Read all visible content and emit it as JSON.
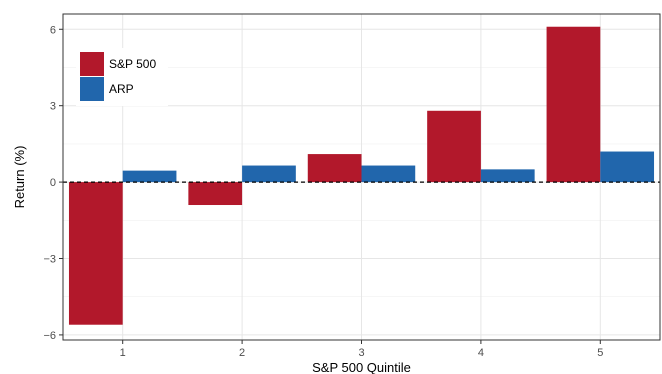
{
  "chart_data": {
    "type": "bar",
    "xlabel": "S&P 500 Quintile",
    "ylabel": "Return (%)",
    "categories": [
      "1",
      "2",
      "3",
      "4",
      "5"
    ],
    "series": [
      {
        "name": "S&P 500",
        "color": "#B2182B",
        "values": [
          -5.6,
          -0.9,
          1.1,
          2.8,
          6.1
        ]
      },
      {
        "name": "ARP",
        "color": "#2166AC",
        "values": [
          0.45,
          0.65,
          0.65,
          0.5,
          1.2
        ]
      }
    ],
    "ylim": [
      -6.2,
      6.6
    ],
    "yticks": [
      -6,
      -3,
      0,
      3,
      6
    ],
    "ytick_labels": [
      "−6",
      "−3",
      "0",
      "3",
      "6"
    ],
    "grid": true,
    "zero_line": "dashed",
    "legend_position": "top-left"
  }
}
